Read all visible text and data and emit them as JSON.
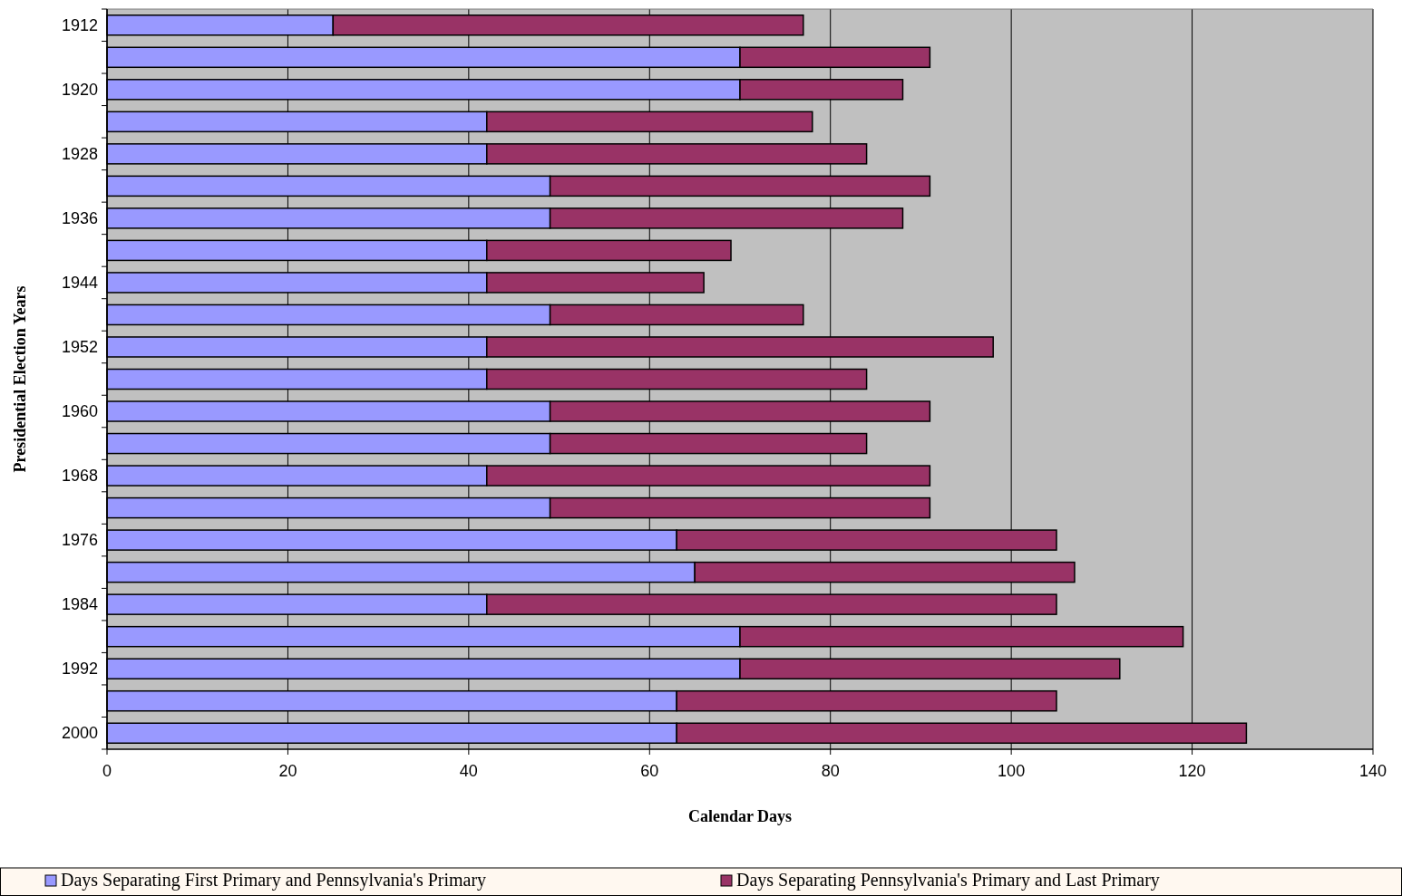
{
  "chart_data": {
    "type": "bar",
    "orientation": "horizontal",
    "stacked": true,
    "categories": [
      "1912",
      null,
      "1920",
      null,
      "1928",
      null,
      "1936",
      null,
      "1944",
      null,
      "1952",
      null,
      "1960",
      null,
      "1968",
      null,
      "1976",
      null,
      "1984",
      null,
      "1992",
      null,
      "2000"
    ],
    "series": [
      {
        "name": "Days Separating First Primary and Pennsylvania's Primary",
        "color": "#9999ff",
        "values": [
          25,
          70,
          70,
          42,
          42,
          49,
          49,
          42,
          42,
          49,
          42,
          42,
          49,
          49,
          42,
          49,
          63,
          65,
          42,
          70,
          70,
          63,
          63
        ]
      },
      {
        "name": "Days Separating Pennsylvania's Primary and Last Primary",
        "color": "#993366",
        "values": [
          52,
          21,
          18,
          36,
          42,
          42,
          39,
          27,
          24,
          28,
          56,
          42,
          42,
          35,
          49,
          42,
          42,
          42,
          63,
          49,
          42,
          42,
          63
        ]
      }
    ],
    "xlim": [
      0,
      140
    ],
    "xticks": [
      0,
      20,
      40,
      60,
      80,
      100,
      120,
      140
    ],
    "xlabel": "Calendar Days",
    "ylabel": "Presidential Election Years",
    "grid": "x",
    "legend": "bottom"
  }
}
